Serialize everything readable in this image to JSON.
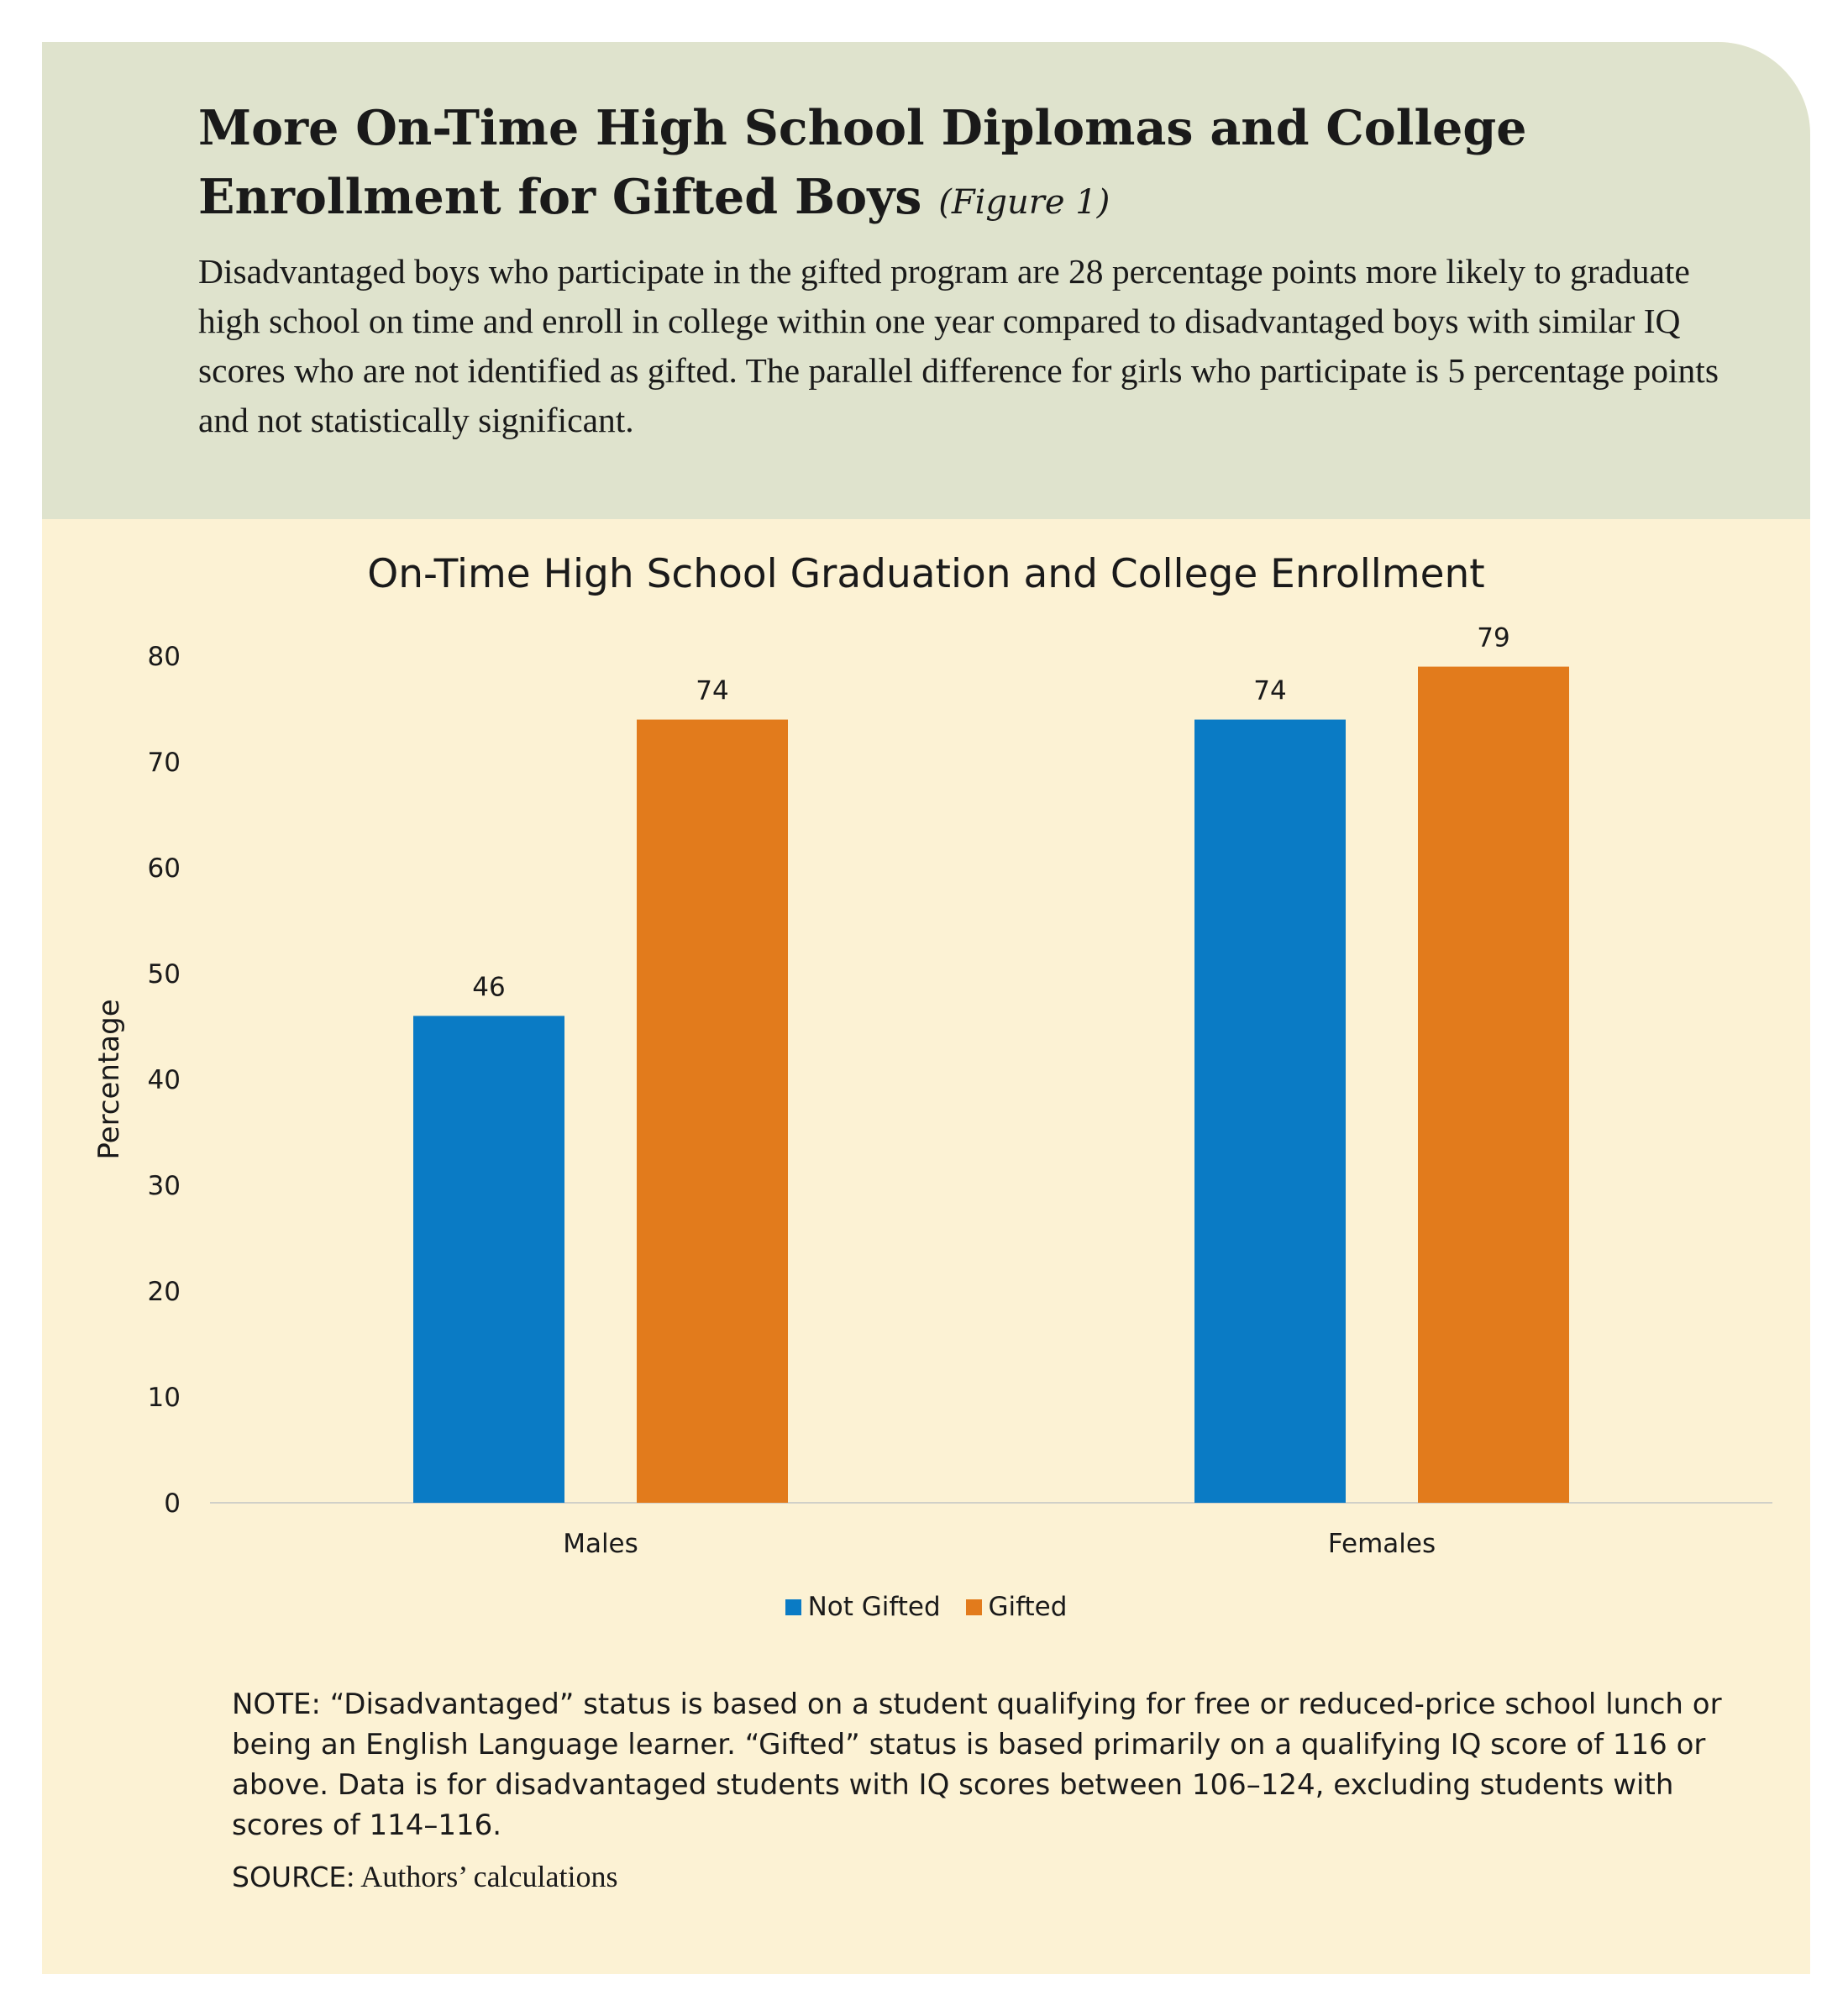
{
  "header": {
    "title": "More On-Time High School Diplomas and College Enrollment for Gifted Boys",
    "figure_ref": "(Figure 1)",
    "description": "Disadvantaged boys who participate in the gifted program are 28 percentage points more likely to graduate high school on time and enroll in college within one year compared to disadvantaged boys with similar IQ scores who are not identified as gifted. The parallel difference for girls who participate is 5 percentage points and not statistically significant."
  },
  "colors": {
    "header_bg": "#dfe3cd",
    "chart_bg": "#fcf2d4",
    "not_gifted": "#0a7bc5",
    "gifted": "#e27b1c"
  },
  "chart_data": {
    "type": "bar",
    "title": "On-Time High School Graduation and College Enrollment",
    "xlabel": "",
    "ylabel": "Percentage",
    "ylim": [
      0,
      80
    ],
    "yticks": [
      0,
      10,
      20,
      30,
      40,
      50,
      60,
      70,
      80
    ],
    "grid": false,
    "legend_position": "bottom",
    "categories": [
      "Males",
      "Females"
    ],
    "series": [
      {
        "name": "Not Gifted",
        "color": "#0a7bc5",
        "values": [
          46,
          74
        ]
      },
      {
        "name": "Gifted",
        "color": "#e27b1c",
        "values": [
          74,
          79
        ]
      }
    ]
  },
  "footer": {
    "note": "NOTE: “Disadvantaged” status is based on a student qualifying for free or reduced-price school lunch or being an English Language learner. “Gifted” status is based primarily on a qualifying IQ score of 116 or above. Data is for disadvantaged students with IQ scores between 106–124, excluding students with scores of 114–116.",
    "source_label": "SOURCE",
    "source_text": ": Authors’ calculations"
  }
}
